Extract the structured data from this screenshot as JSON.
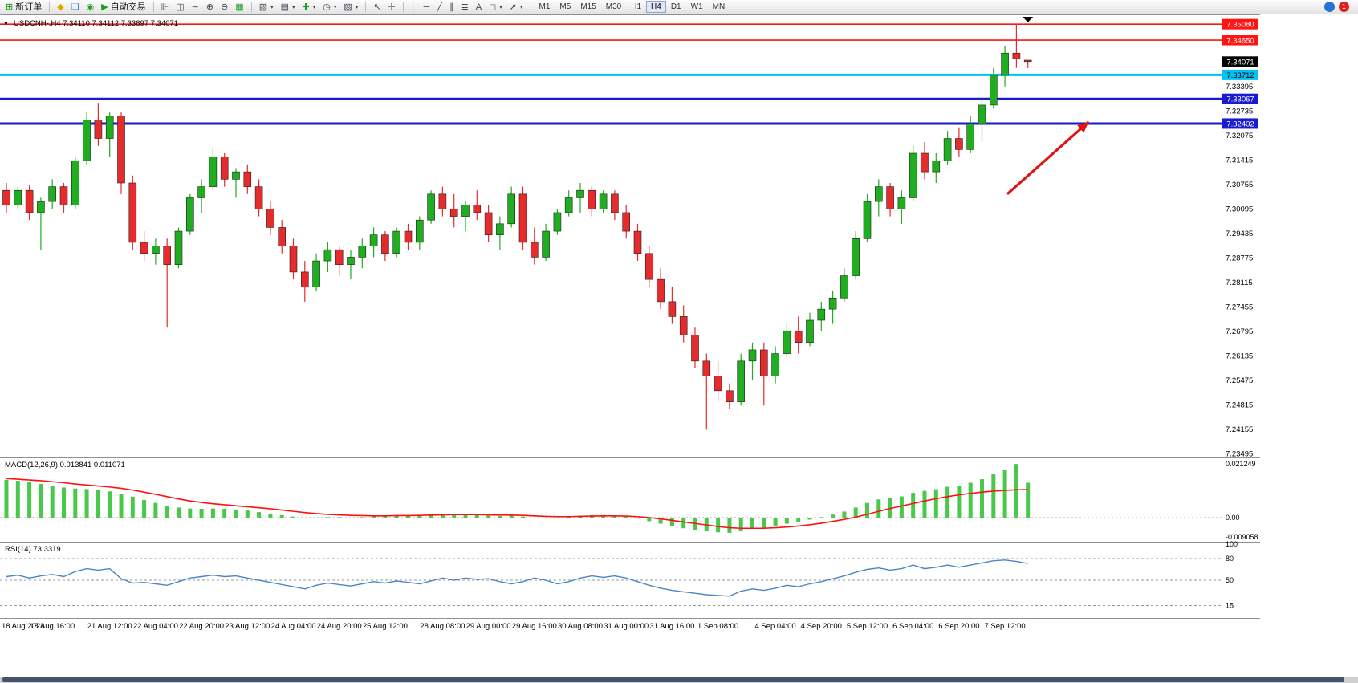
{
  "colors": {
    "up": "#1fae1f",
    "down": "#e52b2b",
    "candle_outline": "#222222",
    "red_line": "#ff1414",
    "cyan_line": "#00c2f5",
    "blue_line": "#1a1ad2",
    "current_price_bg": "#000000",
    "macd_hist": "#49c849",
    "macd_signal": "#ff1010",
    "rsi_line": "#4a86c8",
    "arrow": "#e01414",
    "axis_text": "#000000",
    "panel_border": "#909090"
  },
  "icons": {
    "chart_collapse": "▾",
    "caret": "▾"
  },
  "toolbar": {
    "new_order_label": "新订单",
    "auto_trading_label": "自动交易",
    "buttons": [
      {
        "name": "new-order",
        "glyph": "⊞",
        "color": "#188c18",
        "label": "新订单"
      },
      {
        "sep": true
      },
      {
        "name": "mql5-community",
        "glyph": "◆",
        "color": "#e0a800"
      },
      {
        "name": "chat",
        "glyph": "❑",
        "color": "#3a7bd5"
      },
      {
        "name": "refresh",
        "glyph": "◉",
        "color": "#28a028"
      },
      {
        "name": "auto-trading",
        "glyph": "▶",
        "color": "#18a018",
        "label": "自动交易"
      },
      {
        "sep": true
      },
      {
        "name": "bars-chart-mode",
        "glyph": "⊪"
      },
      {
        "name": "candlestick-mode",
        "glyph": "◫"
      },
      {
        "name": "line-chart-mode",
        "glyph": "∼"
      },
      {
        "name": "zoom-in",
        "glyph": "⊕"
      },
      {
        "name": "zoom-out",
        "glyph": "⊖"
      },
      {
        "name": "tile-windows",
        "glyph": "▦",
        "color": "#28a028"
      },
      {
        "sep": true
      },
      {
        "name": "new-chart",
        "glyph": "▧",
        "caret": true
      },
      {
        "name": "profiles",
        "glyph": "▤",
        "caret": true
      },
      {
        "name": "indicators",
        "glyph": "✚",
        "color": "#18a018",
        "caret": true
      },
      {
        "name": "periods",
        "glyph": "◷",
        "caret": true
      },
      {
        "name": "templates",
        "glyph": "▨",
        "caret": true
      },
      {
        "sep": true
      },
      {
        "name": "cursor",
        "glyph": "↖"
      },
      {
        "name": "crosshair",
        "glyph": "✛"
      },
      {
        "sep": true
      },
      {
        "name": "vertical-line-tool",
        "glyph": "│"
      },
      {
        "name": "horizontal-line-tool",
        "glyph": "─"
      },
      {
        "name": "trendline-tool",
        "glyph": "╱"
      },
      {
        "name": "channel-tool",
        "glyph": "∥"
      },
      {
        "name": "fibonacci-tool",
        "glyph": "≣"
      },
      {
        "name": "text-tool",
        "glyph": "A"
      },
      {
        "name": "shapes-tool",
        "glyph": "◻",
        "caret": true
      },
      {
        "name": "arrows-tool",
        "glyph": "➚",
        "caret": true
      }
    ],
    "timeframes": [
      "M1",
      "M5",
      "M15",
      "M30",
      "H1",
      "H4",
      "D1",
      "W1",
      "MN"
    ],
    "active_timeframe": "H4",
    "right_buttons": [
      {
        "name": "search",
        "glyph": "",
        "color": "#2a6fd4",
        "badge": ""
      },
      {
        "name": "notifications",
        "glyph": "",
        "color": "#e02020",
        "badge": "1"
      }
    ]
  },
  "chart": {
    "title": "USDCNH-,H4 7.34110 7.34112 7.33897 7.34071",
    "symbol": "USDCNH-",
    "period": "H4"
  },
  "indicators": {
    "macd_label": "MACD(12,26,9) 0.013841 0.011071",
    "rsi_label": "RSI(14) 73.3319"
  },
  "chart_data": {
    "type": "candlestick",
    "symbol": "USDCNH",
    "timeframe": "H4",
    "current_ohlc": {
      "open": "7.34110",
      "high": "7.34112",
      "low": "7.33897",
      "close": "7.34071"
    },
    "price_axis": {
      "max": 7.353,
      "min": 7.234,
      "ticks": [
        "7.33395",
        "7.32735",
        "7.32075",
        "7.31415",
        "7.30755",
        "7.30095",
        "7.29435",
        "7.28775",
        "7.28115",
        "7.27455",
        "7.26795",
        "7.26135",
        "7.25475",
        "7.24815",
        "7.24155",
        "7.23495"
      ]
    },
    "price_lines": [
      {
        "label": "7.35080",
        "price": 7.3508,
        "color": "#ff1414",
        "thickness": 1.6,
        "text_color": "#ffffff"
      },
      {
        "label": "7.34650",
        "price": 7.3465,
        "color": "#ff1414",
        "thickness": 1.6,
        "text_color": "#ffffff"
      },
      {
        "label": "7.34071",
        "price": 7.34071,
        "color": "#000000",
        "thickness": 0,
        "text_color": "#ffffff",
        "current": true
      },
      {
        "label": "7.33712",
        "price": 7.33712,
        "color": "#00c2f5",
        "thickness": 3,
        "text_color": "#000000"
      },
      {
        "label": "7.33067",
        "price": 7.33067,
        "color": "#1a1ad2",
        "thickness": 3,
        "text_color": "#ffffff"
      },
      {
        "label": "7.32402",
        "price": 7.32402,
        "color": "#1a1ad2",
        "thickness": 3,
        "text_color": "#ffffff"
      }
    ],
    "candles": [
      [
        7.306,
        7.308,
        7.3,
        7.302
      ],
      [
        7.302,
        7.307,
        7.301,
        7.306
      ],
      [
        7.306,
        7.3075,
        7.298,
        7.3
      ],
      [
        7.3,
        7.304,
        7.29,
        7.303
      ],
      [
        7.303,
        7.309,
        7.301,
        7.307
      ],
      [
        7.307,
        7.308,
        7.3,
        7.302
      ],
      [
        7.302,
        7.315,
        7.301,
        7.314
      ],
      [
        7.314,
        7.327,
        7.313,
        7.325
      ],
      [
        7.325,
        7.3296,
        7.318,
        7.32
      ],
      [
        7.32,
        7.327,
        7.315,
        7.326
      ],
      [
        7.326,
        7.327,
        7.305,
        7.308
      ],
      [
        7.308,
        7.31,
        7.29,
        7.292
      ],
      [
        7.292,
        7.295,
        7.287,
        7.289
      ],
      [
        7.289,
        7.293,
        7.286,
        7.291
      ],
      [
        7.291,
        7.293,
        7.269,
        7.286
      ],
      [
        7.286,
        7.296,
        7.285,
        7.295
      ],
      [
        7.295,
        7.305,
        7.294,
        7.304
      ],
      [
        7.304,
        7.309,
        7.3,
        7.307
      ],
      [
        7.307,
        7.3174,
        7.306,
        7.315
      ],
      [
        7.315,
        7.316,
        7.307,
        7.309
      ],
      [
        7.309,
        7.312,
        7.304,
        7.311
      ],
      [
        7.311,
        7.313,
        7.305,
        7.307
      ],
      [
        7.307,
        7.309,
        7.299,
        7.301
      ],
      [
        7.301,
        7.303,
        7.294,
        7.296
      ],
      [
        7.296,
        7.298,
        7.289,
        7.291
      ],
      [
        7.291,
        7.293,
        7.282,
        7.284
      ],
      [
        7.284,
        7.287,
        7.276,
        7.28
      ],
      [
        7.28,
        7.289,
        7.279,
        7.287
      ],
      [
        7.287,
        7.292,
        7.284,
        7.29
      ],
      [
        7.29,
        7.291,
        7.283,
        7.286
      ],
      [
        7.286,
        7.29,
        7.282,
        7.288
      ],
      [
        7.288,
        7.293,
        7.285,
        7.291
      ],
      [
        7.291,
        7.296,
        7.288,
        7.294
      ],
      [
        7.294,
        7.295,
        7.287,
        7.289
      ],
      [
        7.289,
        7.296,
        7.288,
        7.295
      ],
      [
        7.295,
        7.297,
        7.29,
        7.292
      ],
      [
        7.292,
        7.299,
        7.29,
        7.298
      ],
      [
        7.298,
        7.306,
        7.297,
        7.305
      ],
      [
        7.305,
        7.307,
        7.299,
        7.301
      ],
      [
        7.301,
        7.305,
        7.296,
        7.299
      ],
      [
        7.299,
        7.303,
        7.295,
        7.302
      ],
      [
        7.302,
        7.306,
        7.298,
        7.3
      ],
      [
        7.3,
        7.302,
        7.292,
        7.294
      ],
      [
        7.294,
        7.299,
        7.29,
        7.297
      ],
      [
        7.297,
        7.307,
        7.296,
        7.305
      ],
      [
        7.305,
        7.307,
        7.29,
        7.292
      ],
      [
        7.292,
        7.296,
        7.286,
        7.288
      ],
      [
        7.288,
        7.297,
        7.287,
        7.295
      ],
      [
        7.295,
        7.301,
        7.294,
        7.3
      ],
      [
        7.3,
        7.306,
        7.299,
        7.304
      ],
      [
        7.304,
        7.308,
        7.3,
        7.306
      ],
      [
        7.306,
        7.307,
        7.299,
        7.301
      ],
      [
        7.301,
        7.306,
        7.3,
        7.305
      ],
      [
        7.305,
        7.306,
        7.298,
        7.3
      ],
      [
        7.3,
        7.302,
        7.293,
        7.295
      ],
      [
        7.295,
        7.297,
        7.287,
        7.289
      ],
      [
        7.289,
        7.291,
        7.28,
        7.282
      ],
      [
        7.282,
        7.285,
        7.274,
        7.276
      ],
      [
        7.276,
        7.28,
        7.27,
        7.272
      ],
      [
        7.272,
        7.275,
        7.265,
        7.267
      ],
      [
        7.267,
        7.269,
        7.258,
        7.26
      ],
      [
        7.26,
        7.262,
        7.2415,
        7.256
      ],
      [
        7.256,
        7.26,
        7.249,
        7.252
      ],
      [
        7.252,
        7.254,
        7.247,
        7.249
      ],
      [
        7.249,
        7.262,
        7.248,
        7.26
      ],
      [
        7.26,
        7.265,
        7.255,
        7.263
      ],
      [
        7.263,
        7.265,
        7.248,
        7.256
      ],
      [
        7.256,
        7.264,
        7.254,
        7.262
      ],
      [
        7.262,
        7.27,
        7.261,
        7.268
      ],
      [
        7.268,
        7.272,
        7.262,
        7.265
      ],
      [
        7.265,
        7.273,
        7.264,
        7.271
      ],
      [
        7.271,
        7.276,
        7.268,
        7.274
      ],
      [
        7.274,
        7.279,
        7.27,
        7.277
      ],
      [
        7.277,
        7.285,
        7.276,
        7.283
      ],
      [
        7.283,
        7.295,
        7.282,
        7.293
      ],
      [
        7.293,
        7.305,
        7.292,
        7.303
      ],
      [
        7.303,
        7.309,
        7.299,
        7.307
      ],
      [
        7.307,
        7.308,
        7.299,
        7.301
      ],
      [
        7.301,
        7.306,
        7.297,
        7.304
      ],
      [
        7.304,
        7.318,
        7.303,
        7.316
      ],
      [
        7.316,
        7.319,
        7.309,
        7.311
      ],
      [
        7.311,
        7.316,
        7.308,
        7.314
      ],
      [
        7.314,
        7.322,
        7.313,
        7.32
      ],
      [
        7.32,
        7.323,
        7.315,
        7.317
      ],
      [
        7.317,
        7.326,
        7.316,
        7.324
      ],
      [
        7.324,
        7.331,
        7.319,
        7.329
      ],
      [
        7.329,
        7.339,
        7.328,
        7.337
      ],
      [
        7.337,
        7.345,
        7.334,
        7.343
      ],
      [
        7.343,
        7.3508,
        7.339,
        7.3415
      ],
      [
        7.3411,
        7.34112,
        7.33897,
        7.34071
      ]
    ],
    "macd": {
      "label": "MACD(12,26,9)",
      "value": "0.013841",
      "signal_value": "0.011071",
      "scale_labels": {
        "max": "0.021249",
        "zero": "0.00",
        "min": "-0.009058"
      },
      "values": [
        0.015,
        0.0146,
        0.014,
        0.0133,
        0.0126,
        0.0119,
        0.0115,
        0.0113,
        0.011,
        0.0104,
        0.0095,
        0.0083,
        0.007,
        0.0058,
        0.0047,
        0.004,
        0.0036,
        0.0035,
        0.0036,
        0.0035,
        0.0032,
        0.0028,
        0.0022,
        0.0016,
        0.001,
        0.0004,
        0.0,
        0.0,
        0.0002,
        0.0002,
        0.0,
        0.0002,
        0.0006,
        0.0008,
        0.001,
        0.001,
        0.001,
        0.0014,
        0.0016,
        0.0014,
        0.0012,
        0.0012,
        0.0008,
        0.0006,
        0.0008,
        0.0004,
        -0.0002,
        -0.0002,
        0.0,
        0.0004,
        0.0008,
        0.001,
        0.001,
        0.0008,
        0.0004,
        -0.0004,
        -0.0014,
        -0.0024,
        -0.0034,
        -0.0042,
        -0.0048,
        -0.0054,
        -0.0058,
        -0.006,
        -0.0052,
        -0.0042,
        -0.004,
        -0.0034,
        -0.0024,
        -0.0018,
        -0.0008,
        0.0002,
        0.0012,
        0.0024,
        0.004,
        0.0058,
        0.0072,
        0.0078,
        0.0084,
        0.0098,
        0.0106,
        0.0112,
        0.0122,
        0.0126,
        0.0138,
        0.0152,
        0.0172,
        0.019,
        0.0212,
        0.0138
      ],
      "signal": [
        0.0155,
        0.0152,
        0.0149,
        0.0146,
        0.0142,
        0.0138,
        0.0133,
        0.0129,
        0.0125,
        0.0121,
        0.0116,
        0.0109,
        0.0101,
        0.0092,
        0.0083,
        0.0074,
        0.0066,
        0.006,
        0.0055,
        0.0051,
        0.0047,
        0.0043,
        0.0039,
        0.0035,
        0.003,
        0.0025,
        0.002,
        0.0016,
        0.0013,
        0.0011,
        0.0009,
        0.0008,
        0.0007,
        0.0007,
        0.0008,
        0.0008,
        0.0009,
        0.001,
        0.0011,
        0.0012,
        0.0012,
        0.0012,
        0.0011,
        0.001,
        0.001,
        0.0009,
        0.0007,
        0.0005,
        0.0004,
        0.0004,
        0.0005,
        0.0006,
        0.0007,
        0.0007,
        0.0006,
        0.0004,
        0.0,
        -0.0005,
        -0.0011,
        -0.0017,
        -0.0023,
        -0.0029,
        -0.0035,
        -0.004,
        -0.0042,
        -0.0042,
        -0.0042,
        -0.004,
        -0.0037,
        -0.0033,
        -0.0028,
        -0.0022,
        -0.0015,
        -0.0007,
        0.0002,
        0.0013,
        0.0025,
        0.0036,
        0.0046,
        0.0056,
        0.0066,
        0.0075,
        0.0083,
        0.009,
        0.0096,
        0.0101,
        0.0105,
        0.0108,
        0.011,
        0.0111
      ]
    },
    "rsi": {
      "label": "RSI(14)",
      "value": "73.3319",
      "levels": [
        80,
        50,
        15
      ],
      "scale_labels": [
        [
          "100",
          100
        ],
        [
          "80",
          80
        ],
        [
          "50",
          50
        ],
        [
          "15",
          15
        ]
      ],
      "values": [
        55,
        57,
        53,
        56,
        58,
        55,
        62,
        66,
        64,
        66,
        52,
        46,
        47,
        45,
        43,
        48,
        53,
        55,
        57,
        55,
        56,
        53,
        50,
        47,
        44,
        41,
        38,
        43,
        46,
        44,
        42,
        45,
        48,
        46,
        49,
        47,
        45,
        49,
        53,
        50,
        53,
        51,
        52,
        48,
        45,
        48,
        53,
        50,
        45,
        48,
        53,
        56,
        54,
        56,
        53,
        48,
        43,
        39,
        36,
        34,
        32,
        30,
        29,
        28,
        35,
        38,
        36,
        39,
        43,
        41,
        45,
        48,
        52,
        56,
        61,
        65,
        67,
        64,
        66,
        71,
        66,
        68,
        71,
        68,
        71,
        74,
        77,
        78,
        76,
        73.3
      ]
    },
    "time_axis": [
      {
        "bar": 0,
        "text": "18 Aug 2023"
      },
      {
        "bar": 4,
        "text": "18 Aug 16:00"
      },
      {
        "bar": 9,
        "text": "21 Aug 12:00"
      },
      {
        "bar": 13,
        "text": "22 Aug 04:00"
      },
      {
        "bar": 17,
        "text": "22 Aug 20:00"
      },
      {
        "bar": 21,
        "text": "23 Aug 12:00"
      },
      {
        "bar": 25,
        "text": "24 Aug 04:00"
      },
      {
        "bar": 29,
        "text": "24 Aug 20:00"
      },
      {
        "bar": 33,
        "text": "25 Aug 12:00"
      },
      {
        "bar": 38,
        "text": "28 Aug 08:00"
      },
      {
        "bar": 42,
        "text": "29 Aug 00:00"
      },
      {
        "bar": 46,
        "text": "29 Aug 16:00"
      },
      {
        "bar": 50,
        "text": "30 Aug 08:00"
      },
      {
        "bar": 54,
        "text": "31 Aug 00:00"
      },
      {
        "bar": 58,
        "text": "31 Aug 16:00"
      },
      {
        "bar": 62,
        "text": "1 Sep 08:00"
      },
      {
        "bar": 67,
        "text": "4 Sep 04:00"
      },
      {
        "bar": 71,
        "text": "4 Sep 20:00"
      },
      {
        "bar": 75,
        "text": "5 Sep 12:00"
      },
      {
        "bar": 79,
        "text": "6 Sep 04:00"
      },
      {
        "bar": 83,
        "text": "6 Sep 20:00"
      },
      {
        "bar": 87,
        "text": "7 Sep 12:00"
      }
    ],
    "annotation_arrow": {
      "type": "arrow",
      "direction": "up-right",
      "from": {
        "bar": 87.2,
        "price": 7.305
      },
      "to": {
        "bar": 94.3,
        "price": 7.3245
      }
    }
  }
}
